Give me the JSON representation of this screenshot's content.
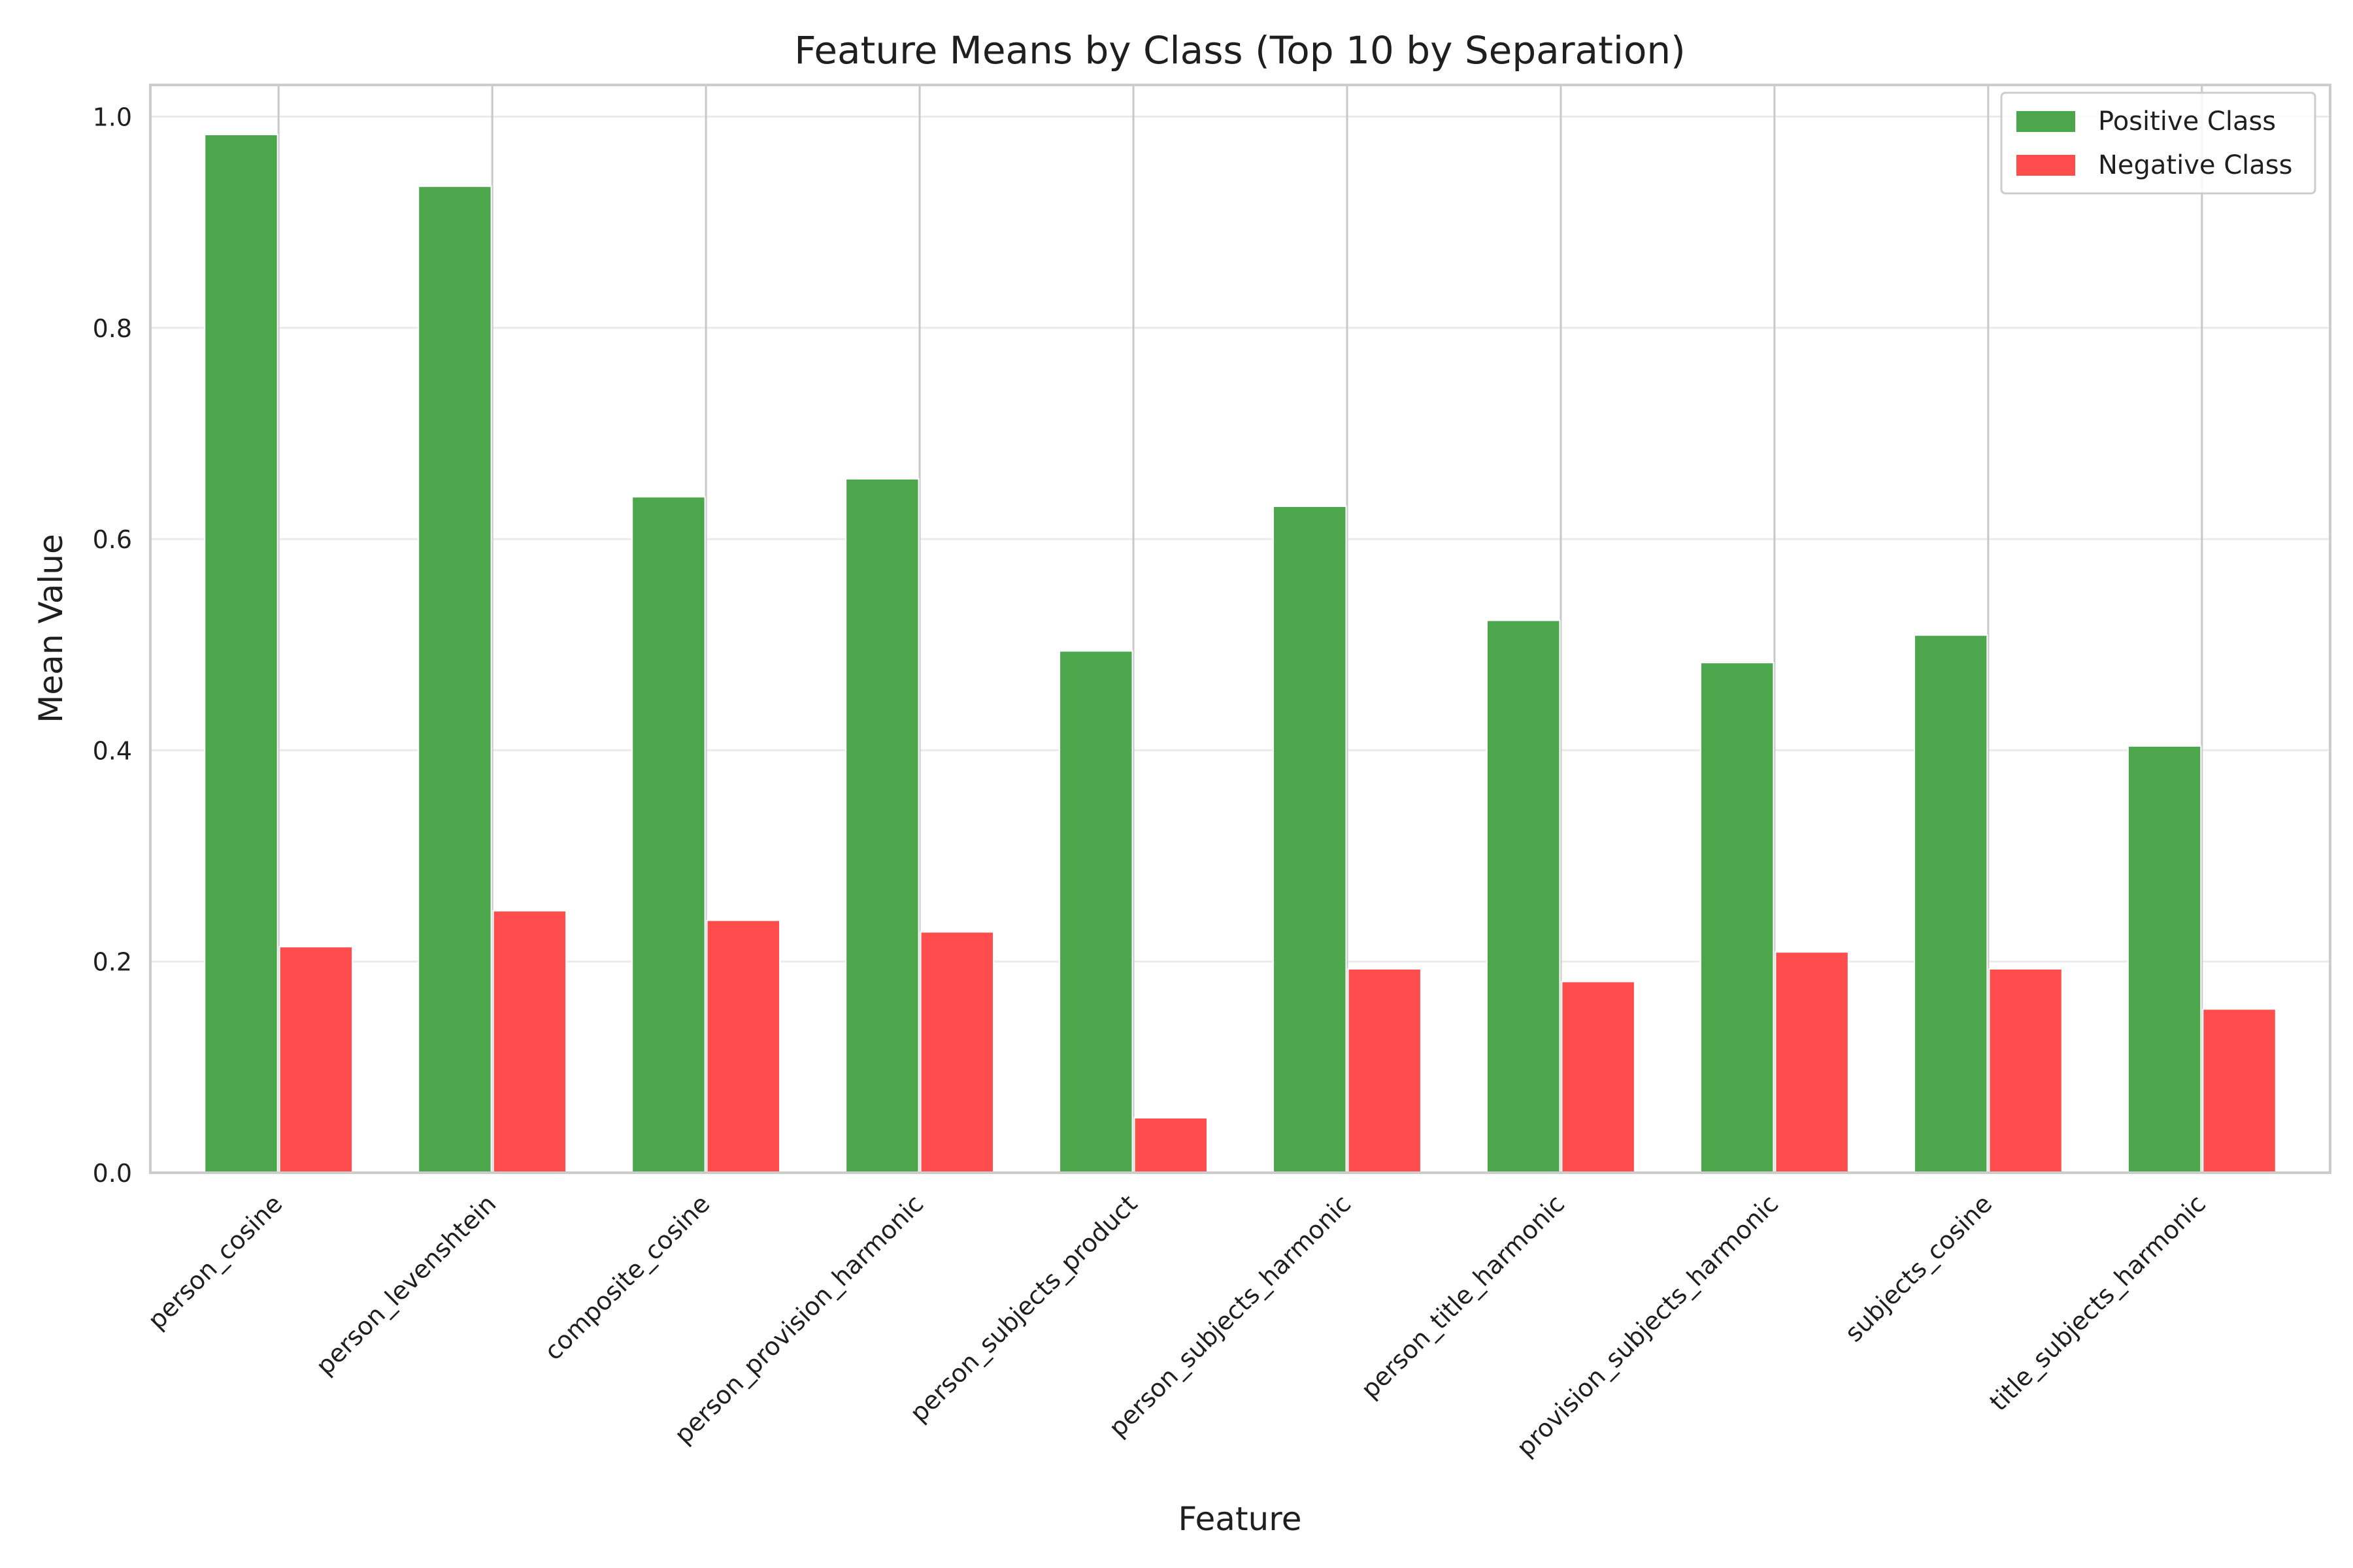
{
  "chart_data": {
    "type": "bar",
    "title": "Feature Means by Class (Top 10 by Separation)",
    "xlabel": "Feature",
    "ylabel": "Mean Value",
    "ylim": [
      0,
      1.03
    ],
    "yticks": [
      0.0,
      0.2,
      0.4,
      0.6,
      0.8,
      1.0
    ],
    "ytick_labels": [
      "0.0",
      "0.2",
      "0.4",
      "0.6",
      "0.8",
      "1.0"
    ],
    "grid": true,
    "legend_position": "top-right",
    "categories": [
      "person_cosine",
      "person_levenshtein",
      "composite_cosine",
      "person_provision_harmonic",
      "person_subjects_product",
      "person_subjects_harmonic",
      "person_title_harmonic",
      "provision_subjects_harmonic",
      "subjects_cosine",
      "title_subjects_harmonic"
    ],
    "series": [
      {
        "name": "Positive Class",
        "color": "#4ca64c",
        "values": [
          0.983,
          0.934,
          0.64,
          0.657,
          0.494,
          0.631,
          0.523,
          0.483,
          0.509,
          0.404
        ]
      },
      {
        "name": "Negative Class",
        "color": "#ff4d4d",
        "values": [
          0.214,
          0.248,
          0.239,
          0.228,
          0.052,
          0.193,
          0.181,
          0.209,
          0.193,
          0.155
        ]
      }
    ]
  }
}
